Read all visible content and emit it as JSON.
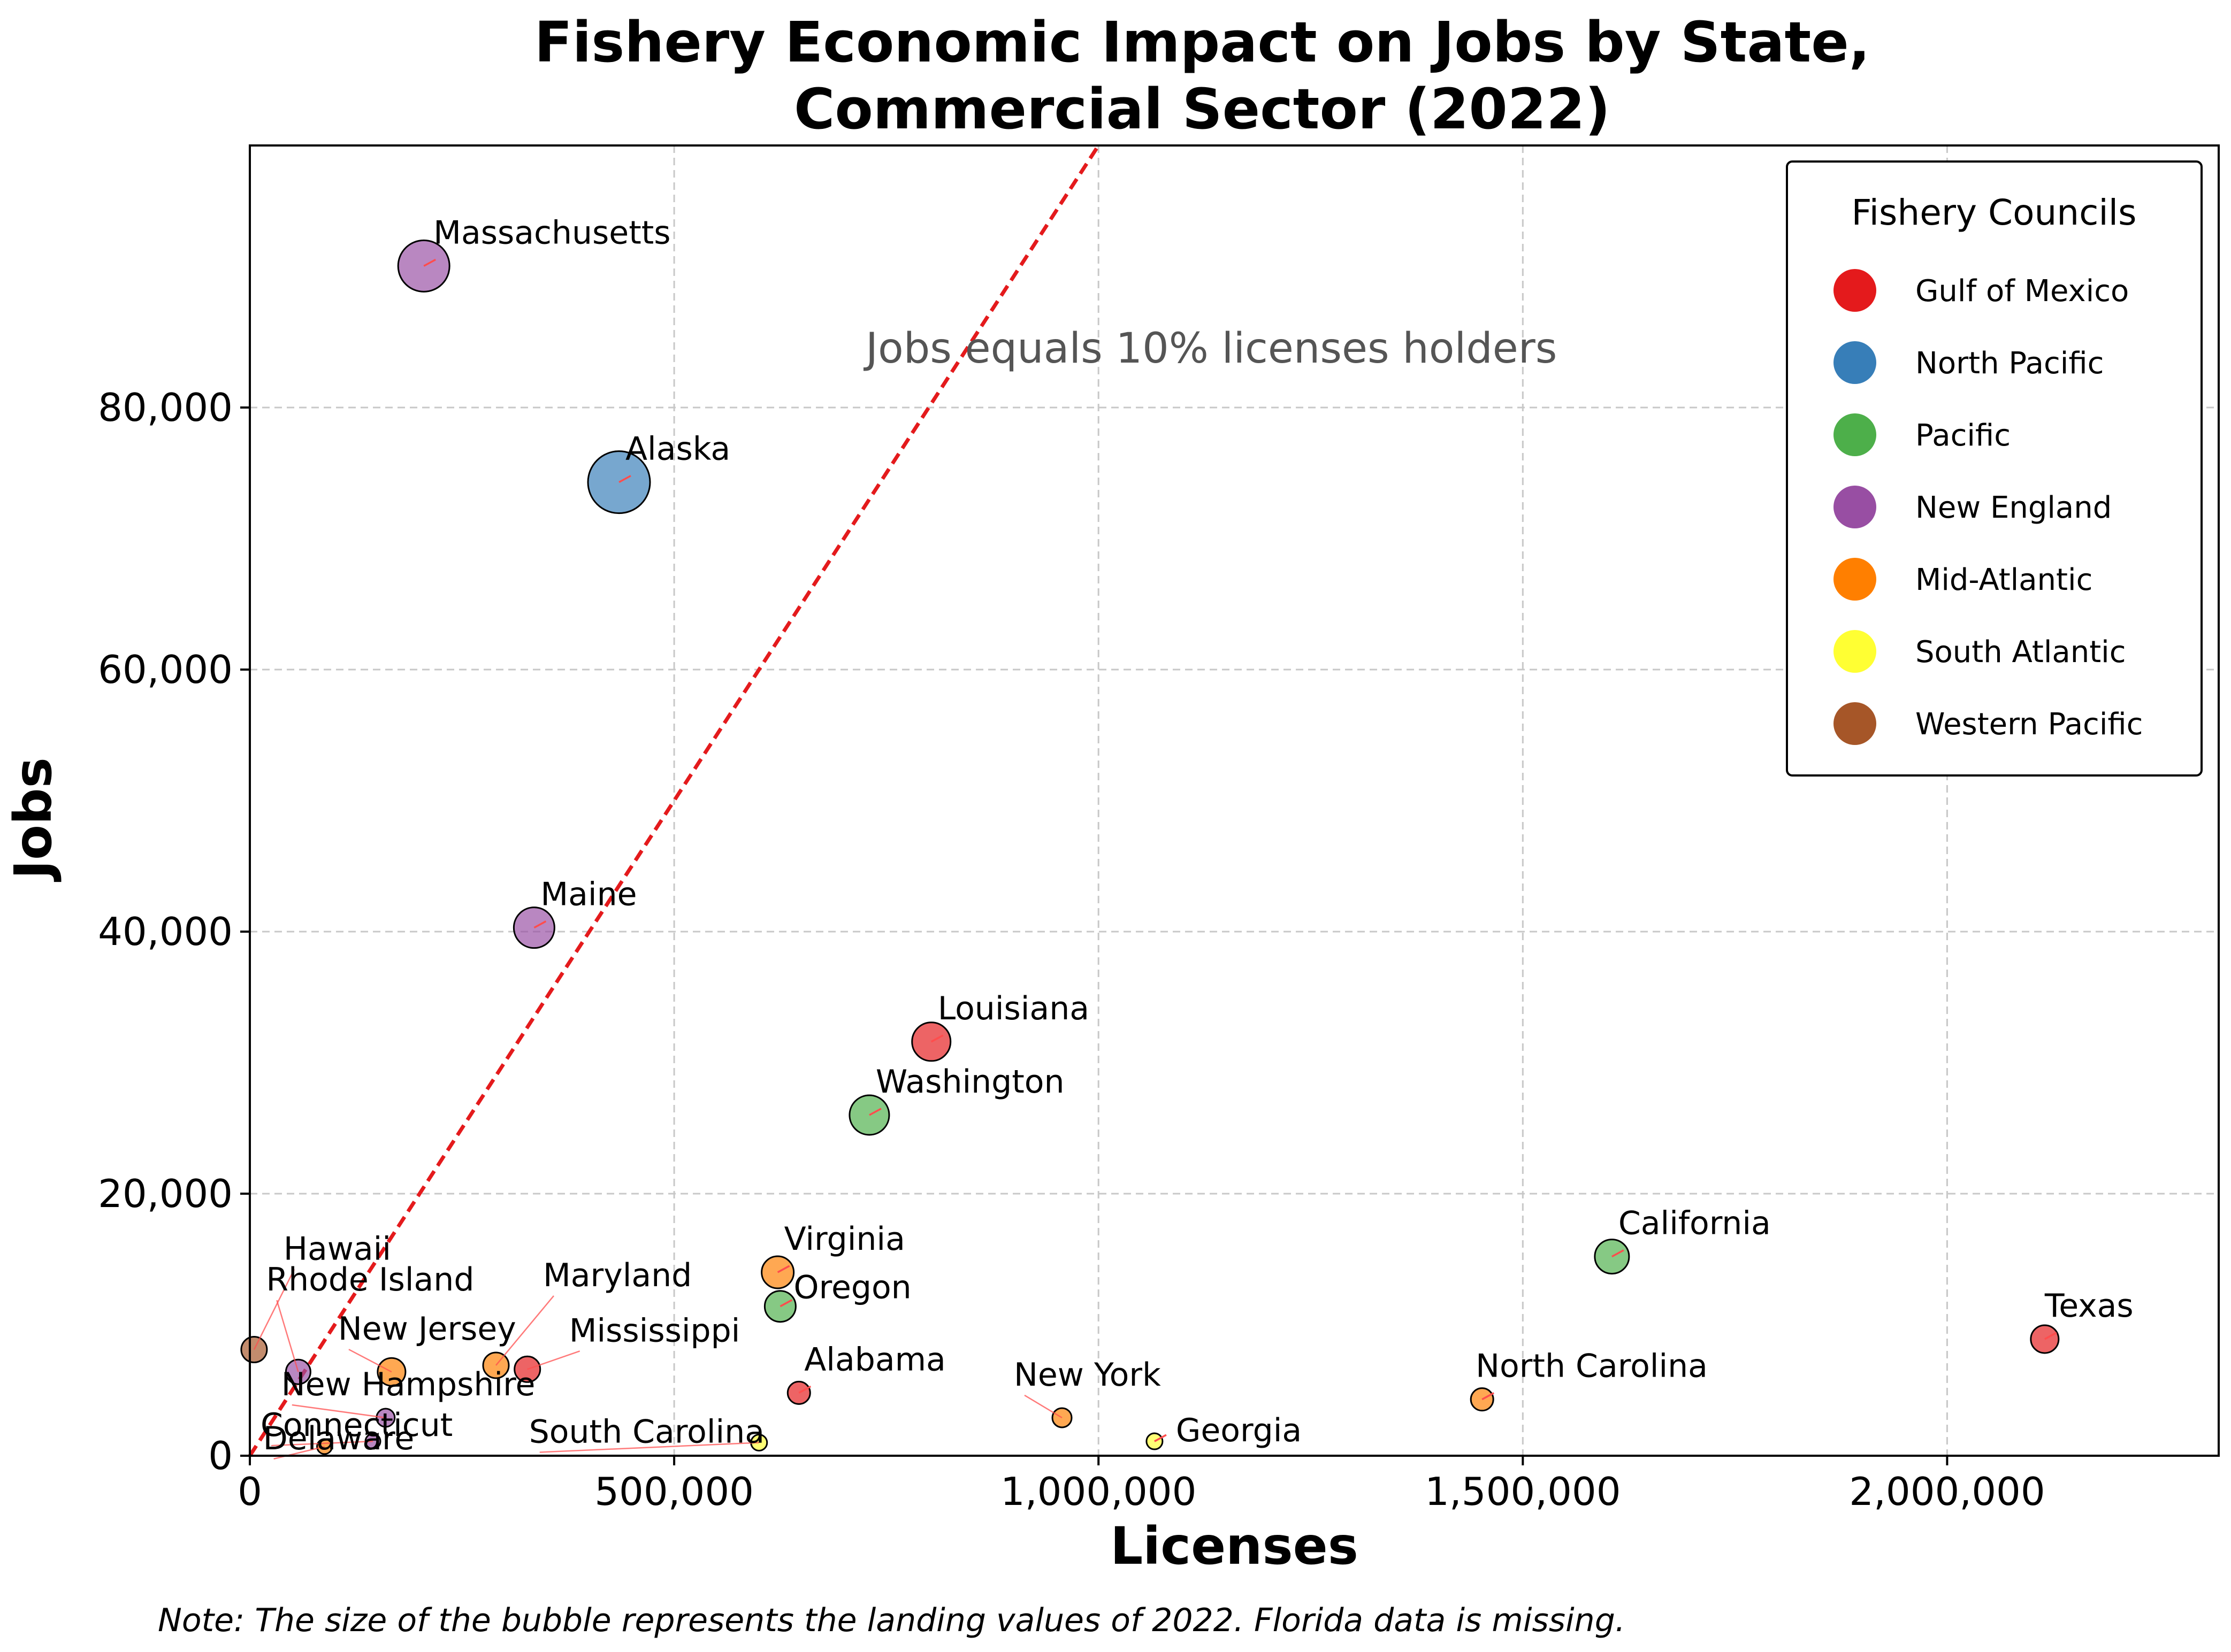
{
  "chart_data": {
    "type": "scatter",
    "title_lines": [
      "Fishery Economic Impact on Jobs by State,",
      "Commercial Sector (2022)"
    ],
    "xlabel": "Licenses",
    "ylabel": "Jobs",
    "xlim": [
      0,
      2320000
    ],
    "ylim": [
      0,
      100000
    ],
    "xticks": [
      0,
      500000,
      1000000,
      1500000,
      2000000
    ],
    "xtick_labels": [
      "0",
      "500,000",
      "1,000,000",
      "1,500,000",
      "2,000,000"
    ],
    "yticks": [
      0,
      20000,
      40000,
      60000,
      80000
    ],
    "ytick_labels": [
      "0",
      "20,000",
      "40,000",
      "60,000",
      "80,000"
    ],
    "grid": true,
    "reference_line": {
      "label": "Jobs equals 10% licenses holders",
      "slope": 0.1,
      "color": "#e41a1c",
      "style": "dashed"
    },
    "legend": {
      "title": "Fishery Councils",
      "placement": "top-right",
      "entries": [
        {
          "name": "Gulf of Mexico",
          "color": "#e41a1c"
        },
        {
          "name": "North Pacific",
          "color": "#377eb8"
        },
        {
          "name": "Pacific",
          "color": "#4daf4a"
        },
        {
          "name": "New England",
          "color": "#984ea3"
        },
        {
          "name": "Mid-Atlantic",
          "color": "#ff7f00"
        },
        {
          "name": "South Atlantic",
          "color": "#ffff33"
        },
        {
          "name": "Western Pacific",
          "color": "#a65628"
        }
      ]
    },
    "points": [
      {
        "state": "Massachusetts",
        "council": "New England",
        "licenses": 205000,
        "jobs": 90800,
        "size": 48
      },
      {
        "state": "Alaska",
        "council": "North Pacific",
        "licenses": 435000,
        "jobs": 74300,
        "size": 58
      },
      {
        "state": "Maine",
        "council": "New England",
        "licenses": 335000,
        "jobs": 40300,
        "size": 38
      },
      {
        "state": "Louisiana",
        "council": "Gulf of Mexico",
        "licenses": 803000,
        "jobs": 31600,
        "size": 36
      },
      {
        "state": "Washington",
        "council": "Pacific",
        "licenses": 730000,
        "jobs": 26000,
        "size": 37
      },
      {
        "state": "California",
        "council": "Pacific",
        "licenses": 1605000,
        "jobs": 15200,
        "size": 32
      },
      {
        "state": "Virginia",
        "council": "Mid-Atlantic",
        "licenses": 622000,
        "jobs": 14000,
        "size": 30
      },
      {
        "state": "Oregon",
        "council": "Pacific",
        "licenses": 625000,
        "jobs": 11400,
        "size": 29
      },
      {
        "state": "Texas",
        "council": "Gulf of Mexico",
        "licenses": 2115000,
        "jobs": 8900,
        "size": 26
      },
      {
        "state": "Hawaii",
        "council": "Western Pacific",
        "licenses": 5000,
        "jobs": 8100,
        "size": 24
      },
      {
        "state": "Rhode Island",
        "council": "New England",
        "licenses": 57000,
        "jobs": 6400,
        "size": 23
      },
      {
        "state": "New Jersey",
        "council": "Mid-Atlantic",
        "licenses": 167000,
        "jobs": 6400,
        "size": 26
      },
      {
        "state": "Maryland",
        "council": "Mid-Atlantic",
        "licenses": 290000,
        "jobs": 6900,
        "size": 24
      },
      {
        "state": "Mississippi",
        "council": "Gulf of Mexico",
        "licenses": 327000,
        "jobs": 6600,
        "size": 24
      },
      {
        "state": "Alabama",
        "council": "Gulf of Mexico",
        "licenses": 647000,
        "jobs": 4800,
        "size": 21
      },
      {
        "state": "North Carolina",
        "council": "Mid-Atlantic",
        "licenses": 1452000,
        "jobs": 4300,
        "size": 21
      },
      {
        "state": "New York",
        "council": "Mid-Atlantic",
        "licenses": 957000,
        "jobs": 2900,
        "size": 18
      },
      {
        "state": "New Hampshire",
        "council": "New England",
        "licenses": 160000,
        "jobs": 2900,
        "size": 17
      },
      {
        "state": "Georgia",
        "council": "South Atlantic",
        "licenses": 1066000,
        "jobs": 1100,
        "size": 15
      },
      {
        "state": "South Carolina",
        "council": "South Atlantic",
        "licenses": 600000,
        "jobs": 1000,
        "size": 15
      },
      {
        "state": "Connecticut",
        "council": "New England",
        "licenses": 145000,
        "jobs": 1100,
        "size": 14
      },
      {
        "state": "Delaware",
        "council": "Mid-Atlantic",
        "licenses": 88000,
        "jobs": 700,
        "size": 14
      }
    ]
  },
  "note": "Note: The size of the bubble represents the landing values of 2022. Florida data is missing."
}
